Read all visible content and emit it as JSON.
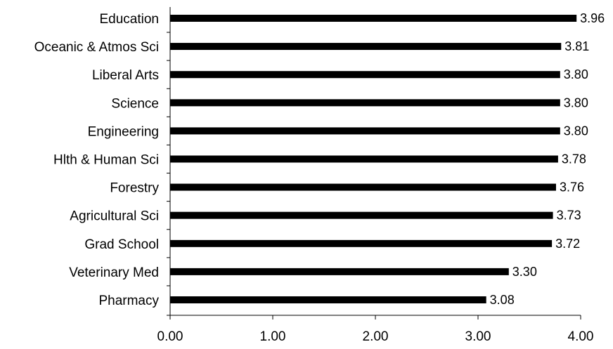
{
  "chart_data": {
    "type": "bar",
    "orientation": "horizontal",
    "categories": [
      "Education",
      "Oceanic & Atmos Sci",
      "Liberal Arts",
      "Science",
      "Engineering",
      "Hlth & Human Sci",
      "Forestry",
      "Agricultural Sci",
      "Grad School",
      "Veterinary Med",
      "Pharmacy"
    ],
    "values": [
      3.96,
      3.81,
      3.8,
      3.8,
      3.8,
      3.78,
      3.76,
      3.73,
      3.72,
      3.3,
      3.08
    ],
    "value_labels": [
      "3.96",
      "3.81",
      "3.80",
      "3.80",
      "3.80",
      "3.78",
      "3.76",
      "3.73",
      "3.72",
      "3.30",
      "3.08"
    ],
    "xlim": [
      0,
      4
    ],
    "x_ticks": [
      0,
      1,
      2,
      3,
      4
    ],
    "x_tick_labels": [
      "0.00",
      "1.00",
      "2.00",
      "3.00",
      "4.00"
    ],
    "title": "",
    "xlabel": "",
    "ylabel": "",
    "grid": false,
    "bar_color": "#000000"
  }
}
